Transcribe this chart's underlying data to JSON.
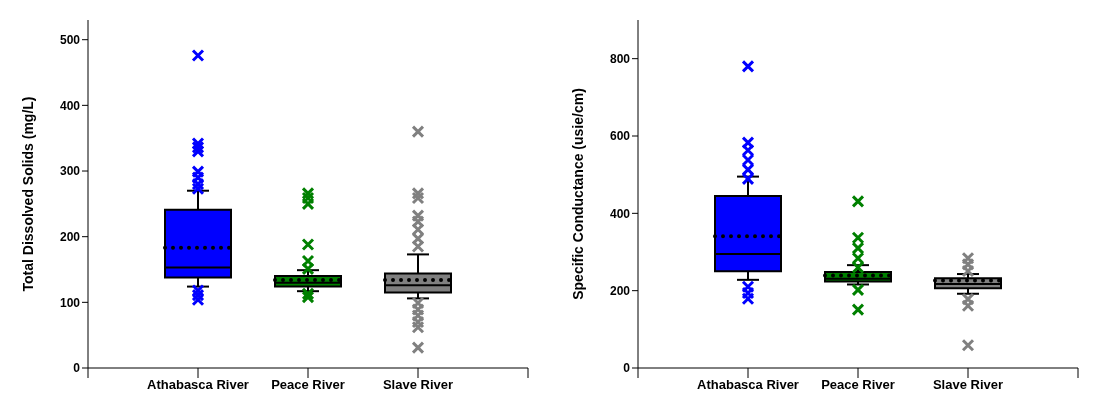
{
  "chart_data": [
    {
      "type": "box",
      "ylabel": "Total Dissolved Solids (mg/L)",
      "categories": [
        "Athabasca River",
        "Peace River",
        "Slave River"
      ],
      "colors": [
        "#0000ff",
        "#008000",
        "#808080"
      ],
      "ylim": [
        0,
        530
      ],
      "yticks": [
        0,
        100,
        200,
        300,
        400,
        500
      ],
      "marker": "cross",
      "boxes": [
        {
          "low": 124,
          "q1": 138,
          "median": 153,
          "q3": 241,
          "high": 270,
          "mean": 183,
          "outliers": [
            476,
            342,
            336,
            330,
            299,
            290,
            280,
            273,
            118,
            111,
            104
          ]
        },
        {
          "low": 117,
          "q1": 124,
          "median": 130,
          "q3": 140,
          "high": 149,
          "mean": 134,
          "outliers": [
            266,
            259,
            250,
            188,
            163,
            151,
            113,
            108
          ]
        },
        {
          "low": 106,
          "q1": 115,
          "median": 126,
          "q3": 144,
          "high": 173,
          "mean": 134,
          "outliers": [
            360,
            266,
            259,
            232,
            223,
            211,
            197,
            185,
            99,
            89,
            80,
            70,
            62,
            31
          ]
        }
      ]
    },
    {
      "type": "box",
      "ylabel": "Specific Conductance (usie/cm)",
      "categories": [
        "Athabasca River",
        "Peace River",
        "Slave River"
      ],
      "colors": [
        "#0000ff",
        "#008000",
        "#808080"
      ],
      "ylim": [
        0,
        900
      ],
      "yticks": [
        0,
        200,
        400,
        600,
        800
      ],
      "marker": "cross",
      "boxes": [
        {
          "low": 228,
          "q1": 250,
          "median": 295,
          "q3": 445,
          "high": 495,
          "mean": 341,
          "outliers": [
            780,
            583,
            563,
            538,
            513,
            489,
            210,
            194,
            179
          ]
        },
        {
          "low": 216,
          "q1": 224,
          "median": 231,
          "q3": 248,
          "high": 266,
          "mean": 239,
          "outliers": [
            431,
            337,
            310,
            284,
            260,
            202,
            151
          ]
        },
        {
          "low": 192,
          "q1": 206,
          "median": 217,
          "q3": 232,
          "high": 243,
          "mean": 226,
          "outliers": [
            284,
            268,
            251,
            178,
            161,
            59
          ]
        }
      ]
    }
  ]
}
